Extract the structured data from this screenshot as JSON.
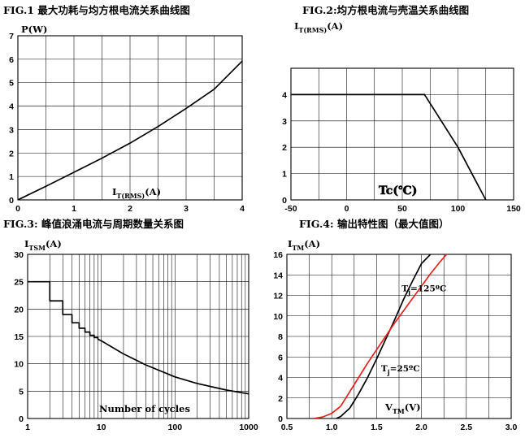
{
  "chart_data": [
    {
      "type": "line",
      "title": "FIG.1  最大功耗与均方根电流关系曲线图",
      "ylabel": "P(W)",
      "xlabel_main": "I",
      "xlabel_sub": "T(RMS)",
      "xlabel_unit": "(A)",
      "xlim": [
        0,
        4
      ],
      "ylim": [
        0,
        7
      ],
      "x_ticks": [
        "0",
        "1",
        "2",
        "3",
        "4"
      ],
      "y_ticks": [
        "0",
        "1",
        "2",
        "3",
        "4",
        "5",
        "6",
        "7"
      ],
      "grid": true,
      "series": [
        {
          "color": "#000000",
          "x": [
            0,
            0.5,
            1,
            1.5,
            2,
            2.5,
            3,
            3.5,
            4
          ],
          "y": [
            0,
            0.58,
            1.18,
            1.78,
            2.42,
            3.13,
            3.9,
            4.72,
            5.92
          ]
        }
      ]
    },
    {
      "type": "line",
      "title": "FIG.2:均方根电流与壳温关系曲线图",
      "ylabel_main": "I",
      "ylabel_sub": "T(RMS)",
      "ylabel_unit": "(A)",
      "xlabel": "Tc(℃)",
      "xlim": [
        -50,
        150
      ],
      "ylim": [
        0,
        5
      ],
      "x_ticks": [
        "-50",
        "0",
        "50",
        "100",
        "150"
      ],
      "y_ticks": [
        "0",
        "1",
        "2",
        "3",
        "4"
      ],
      "grid": true,
      "series": [
        {
          "color": "#000000",
          "x": [
            -50,
            70,
            100,
            125
          ],
          "y": [
            4,
            4,
            2,
            0
          ]
        }
      ]
    },
    {
      "type": "line",
      "title": "FIG.3:  峰值浪涌电流与周期数量关系图",
      "ylabel_main": "I",
      "ylabel_sub": "TSM",
      "ylabel_unit": "(A)",
      "xlabel": "Number of cycles",
      "x_scale": "log",
      "xlim": [
        1,
        1000
      ],
      "ylim": [
        0,
        30
      ],
      "x_ticks": [
        "1",
        "10",
        "100",
        "1000"
      ],
      "y_ticks": [
        "0",
        "5",
        "10",
        "15",
        "20",
        "25",
        "30"
      ],
      "grid": true,
      "series": [
        {
          "color": "#000000",
          "x": [
            1,
            2,
            2,
            3,
            3,
            4,
            4,
            5,
            5,
            6,
            6,
            7,
            7,
            8,
            8,
            9,
            9,
            10,
            20,
            40,
            100,
            200,
            500,
            1000
          ],
          "y": [
            25,
            25,
            21.5,
            21.5,
            19,
            19,
            17.5,
            17.5,
            16.5,
            16.5,
            15.8,
            15.8,
            15.2,
            15.2,
            14.8,
            14.8,
            14.5,
            14.2,
            11.8,
            9.8,
            7.6,
            6.4,
            5.2,
            4.5
          ]
        }
      ]
    },
    {
      "type": "line",
      "title": "FIG.4:  输出特性图（最大值图）",
      "ylabel_main": "I",
      "ylabel_sub": "TM",
      "ylabel_unit": "(A)",
      "xlabel_main": "V",
      "xlabel_sub": "TM",
      "xlabel_unit": "(V)",
      "xlim": [
        0.5,
        3.0
      ],
      "ylim": [
        0,
        16
      ],
      "x_ticks": [
        "0.5",
        "1.0",
        "1.5",
        "2.0",
        "2.5",
        "3.0"
      ],
      "y_ticks": [
        "0",
        "2",
        "4",
        "6",
        "8",
        "10",
        "12",
        "14",
        "16"
      ],
      "grid": true,
      "annotations": [
        {
          "main": "T",
          "sub": "j",
          "rest": "=125ºC",
          "x": 1.78,
          "y": 12.4
        },
        {
          "main": "T",
          "sub": "j",
          "rest": "=25ºC",
          "x": 1.55,
          "y": 4.6
        }
      ],
      "series": [
        {
          "name": "Tj=25ºC",
          "color": "#000000",
          "x": [
            1.05,
            1.1,
            1.2,
            1.3,
            1.4,
            1.5,
            1.6,
            1.7,
            1.8,
            1.9,
            2.0,
            2.1
          ],
          "y": [
            0,
            0.2,
            1.0,
            2.4,
            4.0,
            5.8,
            7.7,
            9.6,
            11.6,
            13.4,
            15.1,
            16.0
          ]
        },
        {
          "name": "Tj=125ºC",
          "color": "#e8231d",
          "x": [
            0.8,
            0.9,
            1.0,
            1.1,
            1.2,
            1.3,
            1.4,
            1.5,
            1.6,
            1.7,
            1.8,
            1.9,
            2.0,
            2.1,
            2.2,
            2.3,
            2.35
          ],
          "y": [
            0,
            0.15,
            0.5,
            1.2,
            2.6,
            4.0,
            5.4,
            6.7,
            8.0,
            9.3,
            10.5,
            11.7,
            12.9,
            14.1,
            15.2,
            16.2,
            16.6
          ]
        }
      ]
    }
  ]
}
